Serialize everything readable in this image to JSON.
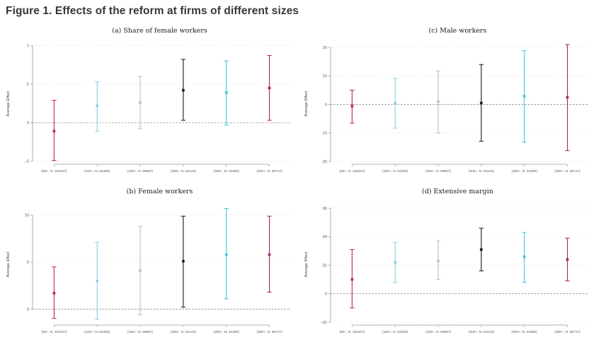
{
  "page": {
    "title": "Figure 1. Effects of the reform at firms of different sizes"
  },
  "palette": {
    "bin_50": "#c02642",
    "bin_100": "#8ecfe4",
    "bin_150": "#bfbfbf",
    "bin_200": "#161616",
    "bin_250": "#3ec6de",
    "bin_300": "#a32369",
    "grid_dotted": "#dcdcdc",
    "zero_line": "#777777",
    "axis": "#999999",
    "tick_text": "#555555"
  },
  "chart_data": [
    {
      "type": "scatter",
      "subtype": "coefficient-errorbar",
      "panel": "a",
      "title": "(a) Share of female workers",
      "ylabel": "Average Effect",
      "ylim": [
        -0.54,
        1.03
      ],
      "grid": "dotted-horizontal",
      "zero_line_dashed": true,
      "legend": "none",
      "yticks": [
        {
          "value": 1,
          "label": "1"
        },
        {
          "value": 0.5,
          "label": ".5"
        },
        {
          "value": 0,
          "label": "0"
        },
        {
          "value": -0.5,
          "label": "-.5"
        }
      ],
      "categories": [
        "(50+, N: 125437)",
        "(100+, N: 53405)",
        "(150+, N: 69667)",
        "(200+, N: 54143)",
        "(250+, N: 43280)",
        "(300+, N: 35717)"
      ],
      "points": [
        {
          "est": -0.11,
          "lo": -0.49,
          "hi": 0.29,
          "color": "#c02642"
        },
        {
          "est": 0.22,
          "lo": -0.11,
          "hi": 0.53,
          "color": "#8ecfe4"
        },
        {
          "est": 0.26,
          "lo": -0.08,
          "hi": 0.6,
          "color": "#bfbfbf"
        },
        {
          "est": 0.42,
          "lo": 0.03,
          "hi": 0.82,
          "color": "#161616"
        },
        {
          "est": 0.39,
          "lo": -0.03,
          "hi": 0.8,
          "color": "#3ec6de"
        },
        {
          "est": 0.45,
          "lo": 0.03,
          "hi": 0.87,
          "color": "#a32369"
        }
      ]
    },
    {
      "type": "scatter",
      "subtype": "coefficient-errorbar",
      "panel": "c",
      "title": "(c) Male workers",
      "ylabel": "Average Effect",
      "ylim": [
        -21,
        21.5
      ],
      "grid": "dotted-horizontal",
      "zero_line_dashed": true,
      "legend": "none",
      "yticks": [
        {
          "value": 20,
          "label": "20"
        },
        {
          "value": 10,
          "label": "10"
        },
        {
          "value": 0,
          "label": "0"
        },
        {
          "value": -10,
          "label": "-10"
        },
        {
          "value": -20,
          "label": "-20"
        }
      ],
      "categories": [
        "(50+, N: 125437)",
        "(100+, N: 53405)",
        "(150+, N: 69667)",
        "(200+, N: 54143)",
        "(250+, N: 43280)",
        "(300+, N: 35717)"
      ],
      "points": [
        {
          "est": -0.6,
          "lo": -6.6,
          "hi": 5.0,
          "color": "#c02642"
        },
        {
          "est": 0.4,
          "lo": -8.3,
          "hi": 9.2,
          "color": "#8ecfe4"
        },
        {
          "est": 1.0,
          "lo": -10.0,
          "hi": 11.8,
          "color": "#bfbfbf"
        },
        {
          "est": 0.5,
          "lo": -12.9,
          "hi": 14.0,
          "color": "#161616"
        },
        {
          "est": 2.9,
          "lo": -13.2,
          "hi": 18.9,
          "color": "#3ec6de"
        },
        {
          "est": 2.5,
          "lo": -16.2,
          "hi": 21.0,
          "color": "#a32369"
        }
      ]
    },
    {
      "type": "scatter",
      "subtype": "coefficient-errorbar",
      "panel": "b",
      "title": "(b) Female workers",
      "ylabel": "Average Effect",
      "ylim": [
        -1.7,
        11.2
      ],
      "grid": "dotted-horizontal",
      "zero_line_dashed": true,
      "legend": "none",
      "yticks": [
        {
          "value": 10,
          "label": "10"
        },
        {
          "value": 5,
          "label": "5"
        },
        {
          "value": 0,
          "label": "0"
        }
      ],
      "categories": [
        "(50+, N: 125437)",
        "(100+, N: 53405)",
        "(150+, N: 69667)",
        "(200+, N: 54143)",
        "(250+, N: 43280)",
        "(300+, N: 35717)"
      ],
      "points": [
        {
          "est": 1.7,
          "lo": -1.0,
          "hi": 4.5,
          "color": "#c02642"
        },
        {
          "est": 3.0,
          "lo": -1.1,
          "hi": 7.1,
          "color": "#8ecfe4"
        },
        {
          "est": 4.1,
          "lo": -0.6,
          "hi": 8.8,
          "color": "#bfbfbf"
        },
        {
          "est": 5.1,
          "lo": 0.2,
          "hi": 9.9,
          "color": "#161616"
        },
        {
          "est": 5.8,
          "lo": 1.1,
          "hi": 10.7,
          "color": "#3ec6de"
        },
        {
          "est": 5.8,
          "lo": 1.8,
          "hi": 9.9,
          "color": "#a32369"
        }
      ]
    },
    {
      "type": "scatter",
      "subtype": "coefficient-errorbar",
      "panel": "d",
      "title": "(d) Extensive margin",
      "ylabel": "Average Effect",
      "ylim": [
        -0.022,
        0.063
      ],
      "grid": "dotted-horizontal",
      "zero_line_dashed": true,
      "legend": "none",
      "yticks": [
        {
          "value": 0.06,
          "label": ".06"
        },
        {
          "value": 0.04,
          "label": ".04"
        },
        {
          "value": 0.02,
          "label": ".02"
        },
        {
          "value": 0,
          "label": "0"
        },
        {
          "value": -0.02,
          "label": "-.02"
        }
      ],
      "categories": [
        "(50+, N: 125437)",
        "(100+, N: 53405)",
        "(150+, N: 69667)",
        "(200+, N: 54143)",
        "(250+, N: 43280)",
        "(300+, N: 35717)"
      ],
      "points": [
        {
          "est": 0.01,
          "lo": -0.01,
          "hi": 0.031,
          "color": "#c02642"
        },
        {
          "est": 0.022,
          "lo": 0.008,
          "hi": 0.036,
          "color": "#8ecfe4"
        },
        {
          "est": 0.023,
          "lo": 0.01,
          "hi": 0.037,
          "color": "#bfbfbf"
        },
        {
          "est": 0.031,
          "lo": 0.016,
          "hi": 0.046,
          "color": "#161616"
        },
        {
          "est": 0.026,
          "lo": 0.008,
          "hi": 0.043,
          "color": "#3ec6de"
        },
        {
          "est": 0.024,
          "lo": 0.009,
          "hi": 0.039,
          "color": "#a32369"
        }
      ]
    }
  ]
}
